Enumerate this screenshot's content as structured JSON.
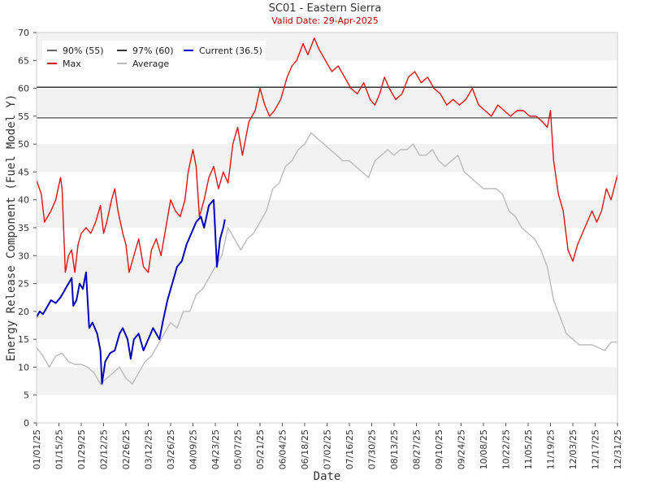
{
  "chart_data": {
    "type": "line",
    "title": "SC01 - Eastern Sierra",
    "subtitle": "Valid Date: 29-Apr-2025",
    "xlabel": "Date",
    "ylabel": "Energy Release Component (Fuel Model Y)",
    "ylim": [
      0,
      70
    ],
    "yticks": [
      0,
      5,
      10,
      15,
      20,
      25,
      30,
      35,
      40,
      45,
      50,
      55,
      60,
      65,
      70
    ],
    "x_start": "2025-01-01",
    "x_end": "2025-12-31",
    "xtick_labels": [
      "01/01/25",
      "01/15/25",
      "01/29/25",
      "02/12/25",
      "02/26/25",
      "03/12/25",
      "03/26/25",
      "04/09/25",
      "04/23/25",
      "05/07/25",
      "05/21/25",
      "06/04/25",
      "06/18/25",
      "07/02/25",
      "07/16/25",
      "07/30/25",
      "08/13/25",
      "08/27/25",
      "09/10/25",
      "09/24/25",
      "10/08/25",
      "10/22/25",
      "11/05/25",
      "11/19/25",
      "12/03/25",
      "12/17/25",
      "12/31/25"
    ],
    "grid": "alternating horizontal bands",
    "legend_position": "top-left",
    "reference_lines": [
      {
        "name": "90% (55)",
        "value": 54.7,
        "color": "#666666"
      },
      {
        "name": "97% (60)",
        "value": 60.2,
        "color": "#333333"
      }
    ],
    "series": [
      {
        "name": "Max",
        "color": "#dd1111",
        "x": [
          "2025-01-01",
          "2025-01-04",
          "2025-01-06",
          "2025-01-10",
          "2025-01-13",
          "2025-01-16",
          "2025-01-17",
          "2025-01-19",
          "2025-01-21",
          "2025-01-23",
          "2025-01-25",
          "2025-01-27",
          "2025-01-29",
          "2025-02-01",
          "2025-02-04",
          "2025-02-07",
          "2025-02-10",
          "2025-02-12",
          "2025-02-14",
          "2025-02-17",
          "2025-02-19",
          "2025-02-21",
          "2025-02-24",
          "2025-02-26",
          "2025-02-28",
          "2025-03-03",
          "2025-03-06",
          "2025-03-09",
          "2025-03-12",
          "2025-03-14",
          "2025-03-17",
          "2025-03-20",
          "2025-03-23",
          "2025-03-26",
          "2025-03-29",
          "2025-04-01",
          "2025-04-04",
          "2025-04-06",
          "2025-04-09",
          "2025-04-11",
          "2025-04-13",
          "2025-04-16",
          "2025-04-19",
          "2025-04-22",
          "2025-04-25",
          "2025-04-28",
          "2025-05-01",
          "2025-05-04",
          "2025-05-07",
          "2025-05-10",
          "2025-05-14",
          "2025-05-18",
          "2025-05-21",
          "2025-05-24",
          "2025-05-27",
          "2025-05-30",
          "2025-06-03",
          "2025-06-07",
          "2025-06-10",
          "2025-06-13",
          "2025-06-17",
          "2025-06-20",
          "2025-06-24",
          "2025-06-27",
          "2025-07-01",
          "2025-07-05",
          "2025-07-09",
          "2025-07-13",
          "2025-07-17",
          "2025-07-21",
          "2025-07-25",
          "2025-07-29",
          "2025-08-01",
          "2025-08-04",
          "2025-08-07",
          "2025-08-10",
          "2025-08-14",
          "2025-08-18",
          "2025-08-22",
          "2025-08-26",
          "2025-08-30",
          "2025-09-03",
          "2025-09-07",
          "2025-09-11",
          "2025-09-15",
          "2025-09-19",
          "2025-09-23",
          "2025-09-27",
          "2025-10-01",
          "2025-10-05",
          "2025-10-09",
          "2025-10-13",
          "2025-10-17",
          "2025-10-21",
          "2025-10-25",
          "2025-10-29",
          "2025-11-02",
          "2025-11-06",
          "2025-11-10",
          "2025-11-14",
          "2025-11-17",
          "2025-11-19",
          "2025-11-21",
          "2025-11-24",
          "2025-11-27",
          "2025-11-30",
          "2025-12-03",
          "2025-12-06",
          "2025-12-09",
          "2025-12-12",
          "2025-12-15",
          "2025-12-18",
          "2025-12-21",
          "2025-12-24",
          "2025-12-27",
          "2025-12-31"
        ],
        "y": [
          43.5,
          41,
          36,
          38,
          40,
          44,
          42,
          27,
          30,
          31,
          27,
          32,
          34,
          35,
          34,
          36,
          39,
          34,
          36,
          40,
          42,
          38,
          34,
          32,
          27,
          30,
          33,
          28,
          27,
          31,
          33,
          30,
          35,
          40,
          38,
          37,
          40,
          45,
          49,
          46,
          37,
          40,
          44,
          46,
          42,
          45,
          43,
          50,
          53,
          48,
          54,
          56,
          60,
          57,
          55,
          56,
          58,
          62,
          64,
          65,
          68,
          66,
          69,
          67,
          65,
          63,
          64,
          62,
          60,
          59,
          61,
          58,
          57,
          59,
          62,
          60,
          58,
          59,
          62,
          63,
          61,
          62,
          60,
          59,
          57,
          58,
          57,
          58,
          60,
          57,
          56,
          55,
          57,
          56,
          55,
          56,
          56,
          55,
          55,
          54,
          53,
          56,
          47,
          41,
          38,
          31,
          29,
          32,
          34,
          36,
          38,
          36,
          38,
          42,
          40,
          44.5
        ]
      },
      {
        "name": "Average",
        "color": "#bbbbbb",
        "x": [
          "2025-01-01",
          "2025-01-05",
          "2025-01-09",
          "2025-01-13",
          "2025-01-17",
          "2025-01-21",
          "2025-01-25",
          "2025-01-29",
          "2025-02-02",
          "2025-02-06",
          "2025-02-10",
          "2025-02-14",
          "2025-02-18",
          "2025-02-22",
          "2025-02-26",
          "2025-03-02",
          "2025-03-06",
          "2025-03-10",
          "2025-03-14",
          "2025-03-18",
          "2025-03-22",
          "2025-03-26",
          "2025-03-30",
          "2025-04-03",
          "2025-04-07",
          "2025-04-11",
          "2025-04-15",
          "2025-04-19",
          "2025-04-23",
          "2025-04-27",
          "2025-05-01",
          "2025-05-05",
          "2025-05-09",
          "2025-05-13",
          "2025-05-17",
          "2025-05-21",
          "2025-05-25",
          "2025-05-29",
          "2025-06-02",
          "2025-06-06",
          "2025-06-10",
          "2025-06-14",
          "2025-06-18",
          "2025-06-22",
          "2025-06-26",
          "2025-06-30",
          "2025-07-04",
          "2025-07-08",
          "2025-07-12",
          "2025-07-16",
          "2025-07-20",
          "2025-07-24",
          "2025-07-28",
          "2025-08-01",
          "2025-08-05",
          "2025-08-09",
          "2025-08-13",
          "2025-08-17",
          "2025-08-21",
          "2025-08-25",
          "2025-08-29",
          "2025-09-02",
          "2025-09-06",
          "2025-09-10",
          "2025-09-14",
          "2025-09-18",
          "2025-09-22",
          "2025-09-26",
          "2025-09-30",
          "2025-10-04",
          "2025-10-08",
          "2025-10-12",
          "2025-10-16",
          "2025-10-20",
          "2025-10-24",
          "2025-10-28",
          "2025-11-01",
          "2025-11-05",
          "2025-11-09",
          "2025-11-13",
          "2025-11-17",
          "2025-11-21",
          "2025-11-25",
          "2025-11-29",
          "2025-12-03",
          "2025-12-07",
          "2025-12-11",
          "2025-12-15",
          "2025-12-19",
          "2025-12-23",
          "2025-12-27",
          "2025-12-31"
        ],
        "y": [
          13.5,
          12,
          10,
          12,
          12.5,
          11,
          10.5,
          10.5,
          10,
          9,
          7,
          8,
          9,
          10,
          8,
          7,
          9,
          11,
          12,
          14,
          16,
          18,
          17,
          20,
          20,
          23,
          24,
          26,
          28,
          30,
          35,
          33,
          31,
          33,
          34,
          36,
          38,
          42,
          43,
          46,
          47,
          49,
          50,
          52,
          51,
          50,
          49,
          48,
          47,
          47,
          46,
          45,
          44,
          47,
          48,
          49,
          48,
          49,
          49,
          50,
          48,
          48,
          49,
          47,
          46,
          47,
          48,
          45,
          44,
          43,
          42,
          42,
          42,
          41,
          38,
          37,
          35,
          34,
          33,
          31,
          28,
          22,
          19,
          16,
          15,
          14,
          14,
          14,
          13.5,
          13,
          14.5,
          14.5
        ]
      },
      {
        "name": "Current (36.5)",
        "color": "#0000bb",
        "x": [
          "2025-01-01",
          "2025-01-03",
          "2025-01-05",
          "2025-01-08",
          "2025-01-10",
          "2025-01-13",
          "2025-01-16",
          "2025-01-19",
          "2025-01-21",
          "2025-01-23",
          "2025-01-24",
          "2025-01-26",
          "2025-01-28",
          "2025-01-30",
          "2025-02-01",
          "2025-02-03",
          "2025-02-05",
          "2025-02-08",
          "2025-02-10",
          "2025-02-11",
          "2025-02-13",
          "2025-02-16",
          "2025-02-19",
          "2025-02-22",
          "2025-02-24",
          "2025-02-27",
          "2025-03-01",
          "2025-03-03",
          "2025-03-06",
          "2025-03-09",
          "2025-03-12",
          "2025-03-15",
          "2025-03-17",
          "2025-03-19",
          "2025-03-21",
          "2025-03-24",
          "2025-03-27",
          "2025-03-30",
          "2025-04-02",
          "2025-04-05",
          "2025-04-08",
          "2025-04-11",
          "2025-04-14",
          "2025-04-16",
          "2025-04-19",
          "2025-04-22",
          "2025-04-24",
          "2025-04-26",
          "2025-04-28",
          "2025-04-29"
        ],
        "y": [
          19,
          20,
          19.5,
          21,
          22,
          21.5,
          22.5,
          24,
          25,
          26,
          21,
          22,
          25,
          24,
          27,
          17,
          18,
          16,
          13,
          7,
          11,
          12.5,
          13,
          16,
          17,
          15,
          11.5,
          15,
          16,
          13,
          15,
          17,
          16,
          15,
          18,
          22,
          25,
          28,
          29,
          32,
          34,
          36,
          37,
          35,
          39,
          40,
          28,
          33,
          35,
          36.5
        ]
      }
    ]
  }
}
